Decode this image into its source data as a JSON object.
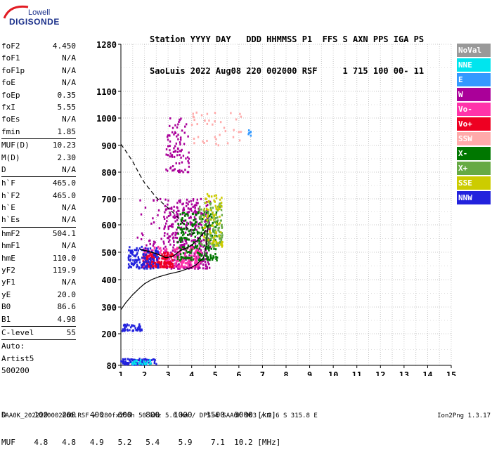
{
  "logo": {
    "top": "Lowell",
    "main": "DIGISONDE"
  },
  "header": {
    "line1": [
      "Station",
      "YYYY",
      "DAY",
      "DDD",
      "HHMMSS",
      "P1",
      "FFS",
      "S",
      "AXN",
      "PPS",
      "IGA",
      "PS"
    ],
    "line2": [
      "SaoLuis",
      "2022",
      "Aug08",
      "220",
      "002000",
      "RSF",
      "",
      "1",
      "715",
      "100",
      "00-",
      "11"
    ]
  },
  "params": [
    {
      "k": "foF2",
      "v": "4.450"
    },
    {
      "k": "foF1",
      "v": "N/A"
    },
    {
      "k": "foF1p",
      "v": "N/A"
    },
    {
      "k": "foE",
      "v": "N/A"
    },
    {
      "k": "foEp",
      "v": "0.35"
    },
    {
      "k": "fxI",
      "v": "5.55"
    },
    {
      "k": "foEs",
      "v": "N/A"
    },
    {
      "k": "fmin",
      "v": "1.85"
    },
    {
      "sep": true
    },
    {
      "k": "MUF(D)",
      "v": "10.23"
    },
    {
      "k": "M(D)",
      "v": "2.30"
    },
    {
      "k": "D",
      "v": "N/A"
    },
    {
      "sep": true
    },
    {
      "k": "h`F",
      "v": "465.0"
    },
    {
      "k": "h`F2",
      "v": "465.0"
    },
    {
      "k": "h`E",
      "v": "N/A"
    },
    {
      "k": "h`Es",
      "v": "N/A"
    },
    {
      "sep": true
    },
    {
      "k": "hmF2",
      "v": "504.1"
    },
    {
      "k": "hmF1",
      "v": "N/A"
    },
    {
      "k": "hmE",
      "v": "110.0"
    },
    {
      "k": "yF2",
      "v": "119.9"
    },
    {
      "k": "yF1",
      "v": "N/A"
    },
    {
      "k": "yE",
      "v": "20.0"
    },
    {
      "k": "B0",
      "v": "86.6"
    },
    {
      "k": "B1",
      "v": "4.98"
    },
    {
      "sep": true
    },
    {
      "k": "C-level",
      "v": "55"
    },
    {
      "sep": true
    },
    {
      "k": "Auto:",
      "v": ""
    },
    {
      "k": "Artist5",
      "v": ""
    },
    {
      "k": "500200",
      "v": ""
    }
  ],
  "legend": [
    {
      "label": "NoVal",
      "color": "#999999"
    },
    {
      "label": "NNE",
      "color": "#00e5ee"
    },
    {
      "label": "E",
      "color": "#3399ff"
    },
    {
      "label": "W",
      "color": "#aa0099"
    },
    {
      "label": "Vo-",
      "color": "#ff33aa"
    },
    {
      "label": "Vo+",
      "color": "#ee0022"
    },
    {
      "label": "SSW",
      "color": "#ffaaaa"
    },
    {
      "label": "X-",
      "color": "#007700"
    },
    {
      "label": "X+",
      "color": "#66aa44"
    },
    {
      "label": "SSE",
      "color": "#cccc00"
    },
    {
      "label": "NNW",
      "color": "#2222dd"
    }
  ],
  "dm_table": {
    "d_label": "D",
    "d_values": [
      "100",
      "200",
      "400",
      "600",
      "800",
      "1000",
      "1500",
      "3000"
    ],
    "d_unit": "[km]",
    "muf_label": "MUF",
    "muf_values": [
      "4.8",
      "4.8",
      "4.9",
      "5.2",
      "5.4",
      "5.9",
      "7.1",
      "10.2"
    ],
    "muf_unit": "[MHz]"
  },
  "footer": {
    "text": "SAA0K_2022220002000.RSF / 280fx256h 50 kHz 5.0 km / DPS-4 SAA0K 903 / 2.6 S 315.8 E",
    "version": "Ion2Png 1.3.17"
  },
  "chart_data": {
    "type": "scatter",
    "title": "",
    "xlabel": "",
    "ylabel": "",
    "xlim": [
      1,
      15
    ],
    "ylim": [
      80,
      1280
    ],
    "x_ticks": [
      "1",
      "2",
      "3",
      "4",
      "5",
      "6",
      "7",
      "8",
      "9",
      "10",
      "11",
      "12",
      "13",
      "14",
      "15"
    ],
    "y_ticks": [
      "80",
      "200",
      "300",
      "400",
      "500",
      "600",
      "700",
      "800",
      "900",
      "1000",
      "1100",
      "1280"
    ],
    "y_tick_values": [
      80,
      200,
      300,
      400,
      500,
      600,
      700,
      800,
      900,
      1000,
      1100,
      1280
    ],
    "y_scale": "nonlinear",
    "grid": true,
    "profile_curve": [
      [
        1.0,
        290
      ],
      [
        1.2,
        315
      ],
      [
        1.5,
        345
      ],
      [
        1.8,
        370
      ],
      [
        2.0,
        385
      ],
      [
        2.3,
        400
      ],
      [
        2.6,
        410
      ],
      [
        3.0,
        420
      ],
      [
        3.5,
        430
      ],
      [
        4.0,
        445
      ],
      [
        4.2,
        455
      ],
      [
        4.5,
        480
      ],
      [
        4.6,
        520
      ],
      [
        4.7,
        600
      ]
    ],
    "dashed_curve": [
      [
        1.0,
        905
      ],
      [
        1.2,
        880
      ],
      [
        1.5,
        840
      ],
      [
        1.8,
        790
      ],
      [
        2.0,
        760
      ],
      [
        2.5,
        705
      ],
      [
        3.0,
        665
      ],
      [
        3.3,
        640
      ],
      [
        3.6,
        610
      ],
      [
        3.9,
        580
      ],
      [
        4.2,
        560
      ]
    ],
    "black_trace": [
      [
        1.8,
        510
      ],
      [
        2.1,
        505
      ],
      [
        2.5,
        495
      ],
      [
        2.9,
        480
      ],
      [
        3.2,
        485
      ],
      [
        3.5,
        505
      ],
      [
        3.9,
        520
      ],
      [
        4.2,
        540
      ],
      [
        4.4,
        560
      ],
      [
        4.6,
        580
      ]
    ],
    "clusters": [
      {
        "color": "#aa0099",
        "x": [
          2.8,
          4.8
        ],
        "y": [
          440,
          700
        ],
        "n": 420
      },
      {
        "color": "#ff33aa",
        "x": [
          1.9,
          4.4
        ],
        "y": [
          445,
          520
        ],
        "n": 260
      },
      {
        "color": "#ee0022",
        "x": [
          1.9,
          3.2
        ],
        "y": [
          445,
          500
        ],
        "n": 160
      },
      {
        "color": "#2222dd",
        "x": [
          1.3,
          2.6
        ],
        "y": [
          440,
          520
        ],
        "n": 140
      },
      {
        "color": "#007700",
        "x": [
          3.4,
          5.1
        ],
        "y": [
          470,
          650
        ],
        "n": 220
      },
      {
        "color": "#66aa44",
        "x": [
          4.3,
          5.3
        ],
        "y": [
          520,
          690
        ],
        "n": 120
      },
      {
        "color": "#cccc00",
        "x": [
          4.5,
          5.3
        ],
        "y": [
          520,
          720
        ],
        "n": 80
      },
      {
        "color": "#aa0099",
        "x": [
          2.9,
          3.9
        ],
        "y": [
          800,
          1000
        ],
        "n": 90
      },
      {
        "color": "#ffaaaa",
        "x": [
          4.0,
          6.2
        ],
        "y": [
          900,
          1030
        ],
        "n": 40
      },
      {
        "color": "#2222dd",
        "x": [
          1.0,
          1.9
        ],
        "y": [
          210,
          235
        ],
        "n": 45
      },
      {
        "color": "#2222dd",
        "x": [
          1.0,
          2.5
        ],
        "y": [
          82,
          105
        ],
        "n": 90
      },
      {
        "color": "#00e5ee",
        "x": [
          1.4,
          2.3
        ],
        "y": [
          84,
          100
        ],
        "n": 25
      },
      {
        "color": "#aa0099",
        "x": [
          1.7,
          2.9
        ],
        "y": [
          520,
          700
        ],
        "n": 30
      },
      {
        "color": "#3399ff",
        "x": [
          6.4,
          6.5
        ],
        "y": [
          935,
          965
        ],
        "n": 6
      }
    ]
  }
}
